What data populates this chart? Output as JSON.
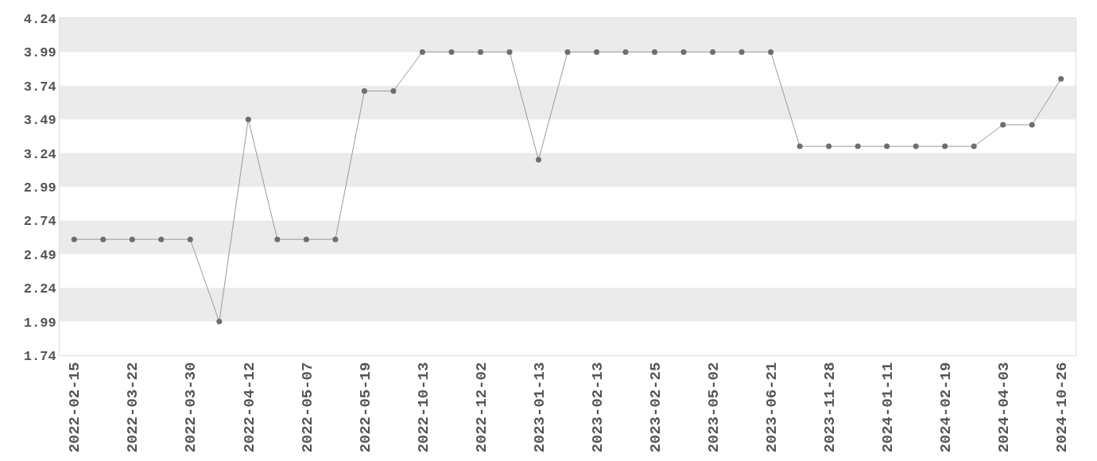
{
  "chart_data": {
    "type": "line",
    "categories": [
      "2022-02-15",
      null,
      "2022-03-22",
      null,
      "2022-03-30",
      null,
      "2022-04-12",
      null,
      "2022-05-07",
      null,
      "2022-05-19",
      null,
      "2022-10-13",
      null,
      "2022-12-02",
      null,
      "2023-01-13",
      null,
      "2023-02-13",
      null,
      "2023-02-25",
      null,
      "2023-05-02",
      null,
      "2023-06-21",
      null,
      "2023-11-28",
      null,
      "2024-01-11",
      null,
      "2024-02-19",
      null,
      "2024-04-03",
      null,
      "2024-10-26"
    ],
    "series": [
      {
        "color": "#6e6e6e",
        "values": [
          2.6,
          2.6,
          2.6,
          2.6,
          2.6,
          1.99,
          3.49,
          2.6,
          2.6,
          2.6,
          3.7,
          3.7,
          3.99,
          3.99,
          3.99,
          3.99,
          3.19,
          3.99,
          3.99,
          3.99,
          3.99,
          3.99,
          3.99,
          3.99,
          3.99,
          3.29,
          3.29,
          3.29,
          3.29,
          3.29,
          3.29,
          3.29,
          3.45,
          3.45,
          3.79
        ]
      }
    ],
    "ylim": [
      1.74,
      4.24
    ],
    "yticks": [
      1.74,
      1.99,
      2.24,
      2.49,
      2.74,
      2.99,
      3.24,
      3.49,
      3.74,
      3.99,
      4.24
    ],
    "bands": [
      {
        "axis": "y",
        "from": 1.99,
        "to": 2.24,
        "color": "#ebebeb"
      },
      {
        "axis": "y",
        "from": 2.49,
        "to": 2.74,
        "color": "#ebebeb"
      },
      {
        "axis": "y",
        "from": 2.99,
        "to": 3.24,
        "color": "#ebebeb"
      },
      {
        "axis": "y",
        "from": 3.49,
        "to": 3.74,
        "color": "#ebebeb"
      },
      {
        "axis": "y",
        "from": 3.99,
        "to": 4.24,
        "color": "#ebebeb"
      }
    ],
    "marker": "circle",
    "line_style": "solid",
    "legend": false
  }
}
